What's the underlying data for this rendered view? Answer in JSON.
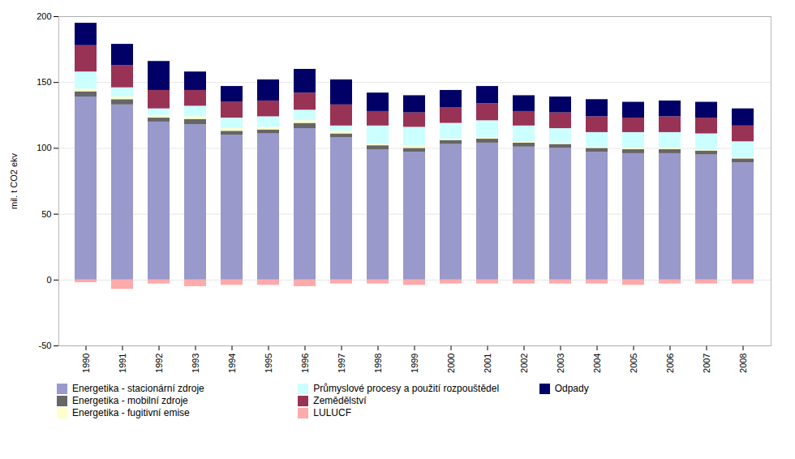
{
  "chart_data": {
    "type": "bar",
    "stacked": true,
    "ylabel": "mil. t CO2 ekv",
    "categories": [
      "1990",
      "1991",
      "1992",
      "1993",
      "1994",
      "1995",
      "1996",
      "1997",
      "1998",
      "1999",
      "2000",
      "2001",
      "2002",
      "2003",
      "2004",
      "2005",
      "2006",
      "2007",
      "2008"
    ],
    "series": [
      {
        "name": "Energetika - stacionární zdroje",
        "color": "#9999cc",
        "values": [
          139,
          133,
          120,
          118,
          110,
          111,
          115,
          108,
          99,
          97,
          103,
          104,
          101,
          100,
          97,
          96,
          96,
          95,
          89
        ]
      },
      {
        "name": "Energetika - mobilní zdroje",
        "color": "#666666",
        "values": [
          4,
          4,
          3,
          4,
          3,
          3,
          4,
          3,
          3,
          3,
          3,
          3,
          3,
          3,
          3,
          3,
          3,
          3,
          3
        ]
      },
      {
        "name": "Energetika - fugitivní emise",
        "color": "#ffffcc",
        "values": [
          2,
          2,
          2,
          2,
          2,
          2,
          2,
          2,
          1,
          2,
          1,
          1,
          1,
          1,
          1,
          1,
          1,
          1,
          1
        ]
      },
      {
        "name": "Průmyslové procesy a použití rozpouštědel",
        "color": "#ccffff",
        "values": [
          13,
          7,
          5,
          8,
          8,
          8,
          8,
          4,
          14,
          14,
          12,
          13,
          12,
          11,
          11,
          12,
          12,
          12,
          12
        ]
      },
      {
        "name": "Zemědělství",
        "color": "#993355",
        "values": [
          20,
          17,
          14,
          12,
          12,
          12,
          13,
          16,
          11,
          11,
          12,
          13,
          11,
          12,
          12,
          11,
          12,
          12,
          12
        ]
      },
      {
        "name": "LULUCF",
        "color": "#ffaaaa",
        "values": [
          -2,
          -7,
          -3,
          -5,
          -4,
          -4,
          -5,
          -3,
          -3,
          -4,
          -3,
          -3,
          -3,
          -3,
          -3,
          -4,
          -3,
          -3,
          -3
        ]
      },
      {
        "name": "Odpady",
        "color": "#000066",
        "values": [
          17,
          16,
          22,
          14,
          12,
          16,
          18,
          19,
          14,
          13,
          13,
          13,
          12,
          12,
          13,
          12,
          12,
          12,
          13
        ]
      }
    ],
    "ylim": [
      -50,
      200
    ],
    "yticks": [
      -50,
      0,
      50,
      100,
      150,
      200
    ],
    "grid": true,
    "legend": "bottom"
  }
}
